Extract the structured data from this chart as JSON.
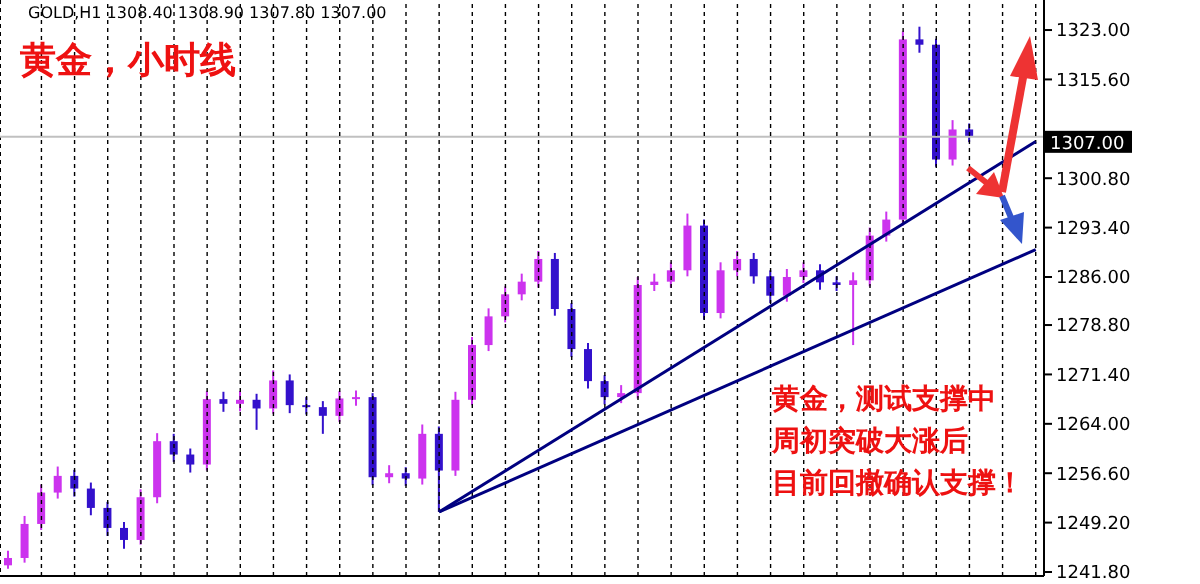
{
  "chart_data": {
    "type": "candlestick",
    "title": "黄金，小时线",
    "annotations": [
      "GOLD,H1  1308.40 1308.90 1307.80 1307.00",
      "黄金，测试支撑中",
      "周初突破大涨后",
      "目前回撤确认支撑！"
    ],
    "categories": [
      null,
      null,
      null,
      null,
      null,
      null,
      null,
      null,
      null,
      null,
      null,
      null,
      null,
      null,
      null,
      null,
      null,
      null,
      null,
      null,
      null,
      null,
      null,
      null,
      null,
      null,
      null,
      null,
      null,
      null,
      null,
      null,
      null,
      null,
      null,
      null,
      null,
      null,
      null,
      null,
      null,
      null,
      null,
      null,
      null,
      null,
      null,
      null,
      null,
      null,
      null,
      null,
      null,
      null,
      null,
      null,
      null,
      null,
      null,
      null,
      null,
      null,
      null
    ],
    "series": [
      {
        "color": "#cc33ee",
        "colors": [
          "#cc33ee",
          "#cc33ee",
          "#cc33ee",
          "#cc33ee",
          "#3311cc",
          "#3311cc",
          "#3311cc",
          "#3311cc",
          "#cc33ee",
          "#cc33ee",
          "#3311cc",
          "#3311cc",
          "#cc33ee",
          "#3311cc",
          "#cc33ee",
          "#3311cc",
          "#cc33ee",
          "#3311cc",
          "#3311cc",
          "#3311cc",
          "#cc33ee",
          "#cc33ee",
          "#3311cc",
          "#cc33ee",
          "#3311cc",
          "#cc33ee",
          "#3311cc",
          "#cc33ee",
          "#cc33ee",
          "#cc33ee",
          "#cc33ee",
          "#cc33ee",
          "#cc33ee",
          "#3311cc",
          "#3311cc",
          "#3311cc",
          "#3311cc",
          "#cc33ee",
          "#cc33ee",
          "#cc33ee",
          "#cc33ee",
          "#cc33ee",
          "#3311cc",
          "#cc33ee",
          "#cc33ee",
          "#3311cc",
          "#3311cc",
          "#cc33ee",
          "#cc33ee",
          "#3311cc",
          "#3311cc",
          "#cc33ee",
          "#cc33ee",
          "#cc33ee",
          "#cc33ee",
          "#3311cc",
          "#3311cc",
          "#cc33ee",
          "#3311cc",
          null,
          null,
          null,
          null
        ],
        "ohlc": [
          [
            1242.8,
            1245.0,
            1242.3,
            1243.9
          ],
          [
            1243.9,
            1250.2,
            1243.2,
            1249.0
          ],
          [
            1249.0,
            1254.9,
            1248.1,
            1253.7
          ],
          [
            1253.7,
            1257.6,
            1252.8,
            1256.2
          ],
          [
            1256.2,
            1257.1,
            1253.1,
            1254.3
          ],
          [
            1254.3,
            1255.2,
            1250.3,
            1251.4
          ],
          [
            1251.4,
            1252.3,
            1247.2,
            1248.4
          ],
          [
            1248.4,
            1249.3,
            1245.3,
            1246.6
          ],
          [
            1246.6,
            1254.2,
            1245.9,
            1253.0
          ],
          [
            1253.0,
            1262.6,
            1252.1,
            1261.4
          ],
          [
            1261.4,
            1262.5,
            1258.3,
            1259.4
          ],
          [
            1259.4,
            1260.3,
            1256.7,
            1257.9
          ],
          [
            1257.9,
            1268.9,
            1257.0,
            1267.7
          ],
          [
            1267.7,
            1268.8,
            1265.8,
            1267.0
          ],
          [
            1267.0,
            1268.9,
            1265.9,
            1267.6
          ],
          [
            1267.6,
            1268.5,
            1263.1,
            1266.3
          ],
          [
            1266.3,
            1272.0,
            1265.5,
            1270.5
          ],
          [
            1270.5,
            1271.4,
            1265.6,
            1266.8
          ],
          [
            1266.8,
            1268.0,
            1265.4,
            1266.5
          ],
          [
            1266.5,
            1267.4,
            1262.5,
            1265.2
          ],
          [
            1265.2,
            1268.9,
            1264.3,
            1267.8
          ],
          [
            1267.8,
            1269.0,
            1266.7,
            1268.0
          ],
          [
            1268.0,
            1268.6,
            1254.8,
            1256.0
          ],
          [
            1256.0,
            1257.8,
            1255.1,
            1256.6
          ],
          [
            1256.6,
            1257.5,
            1254.7,
            1255.8
          ],
          [
            1255.8,
            1263.9,
            1254.9,
            1262.5
          ],
          [
            1262.5,
            1263.6,
            1250.8,
            1257.0
          ],
          [
            1257.0,
            1268.8,
            1256.2,
            1267.6
          ],
          [
            1267.6,
            1277.0,
            1266.8,
            1275.8
          ],
          [
            1275.8,
            1281.3,
            1274.9,
            1280.1
          ],
          [
            1280.1,
            1284.6,
            1279.2,
            1283.4
          ],
          [
            1283.4,
            1286.5,
            1282.5,
            1285.3
          ],
          [
            1285.3,
            1289.9,
            1284.4,
            1288.7
          ],
          [
            1288.7,
            1289.6,
            1280.2,
            1281.2
          ],
          [
            1281.2,
            1282.1,
            1274.0,
            1275.2
          ],
          [
            1275.2,
            1276.1,
            1269.3,
            1270.4
          ],
          [
            1270.4,
            1271.3,
            1266.9,
            1268.0
          ],
          [
            1268.0,
            1269.8,
            1267.1,
            1268.6
          ],
          [
            1268.6,
            1286.0,
            1267.8,
            1284.8
          ],
          [
            1284.8,
            1286.5,
            1283.9,
            1285.3
          ],
          [
            1285.3,
            1288.2,
            1284.4,
            1287.0
          ],
          [
            1287.0,
            1295.5,
            1286.1,
            1293.7
          ],
          [
            1293.7,
            1294.6,
            1279.6,
            1280.6
          ],
          [
            1280.6,
            1288.2,
            1279.8,
            1287.0
          ],
          [
            1287.0,
            1289.9,
            1286.1,
            1288.7
          ],
          [
            1288.7,
            1289.6,
            1285.0,
            1286.1
          ],
          [
            1286.1,
            1287.0,
            1282.1,
            1283.2
          ],
          [
            1283.2,
            1287.2,
            1282.3,
            1286.0
          ],
          [
            1286.0,
            1288.2,
            1285.1,
            1287.0
          ],
          [
            1287.0,
            1287.9,
            1284.1,
            1285.2
          ],
          [
            1285.2,
            1286.1,
            1283.9,
            1284.8
          ],
          [
            1284.8,
            1286.7,
            1275.8,
            1285.5
          ],
          [
            1285.5,
            1293.4,
            1284.6,
            1292.2
          ],
          [
            1292.2,
            1295.8,
            1291.3,
            1294.6
          ],
          [
            1294.6,
            1322.8,
            1293.7,
            1321.6
          ],
          [
            1321.6,
            1323.5,
            1319.6,
            1320.8
          ],
          [
            1320.8,
            1321.7,
            1302.5,
            1303.6
          ],
          [
            1303.6,
            1309.5,
            1302.7,
            1308.1
          ],
          [
            1308.1,
            1309.0,
            1306.2,
            1307.0
          ],
          null,
          null,
          null,
          null
        ]
      },
      {
        "type": "line",
        "color": "#000080",
        "values": [
          null,
          null,
          null,
          null,
          null,
          null,
          null,
          null,
          null,
          null,
          null,
          null,
          null,
          null,
          null,
          null,
          null,
          null,
          null,
          null,
          null,
          null,
          null,
          null,
          null,
          null,
          1250.8,
          null,
          null,
          null,
          null,
          null,
          null,
          null,
          null,
          null,
          null,
          null,
          null,
          null,
          null,
          null,
          null,
          null,
          null,
          null,
          null,
          null,
          null,
          null,
          null,
          null,
          null,
          null,
          null,
          null,
          null,
          null,
          null,
          null,
          null,
          null,
          1306.3
        ]
      },
      {
        "type": "line",
        "color": "#000080",
        "values": [
          null,
          null,
          null,
          null,
          null,
          null,
          null,
          null,
          null,
          null,
          null,
          null,
          null,
          null,
          null,
          null,
          null,
          null,
          null,
          null,
          null,
          null,
          null,
          null,
          null,
          null,
          1250.8,
          null,
          null,
          null,
          null,
          null,
          null,
          null,
          null,
          null,
          null,
          null,
          null,
          null,
          null,
          null,
          null,
          null,
          null,
          null,
          null,
          null,
          null,
          null,
          null,
          null,
          null,
          null,
          null,
          null,
          null,
          null,
          null,
          null,
          null,
          null,
          1290.1
        ]
      }
    ],
    "ylim": [
      1241.2,
      1327.5
    ],
    "yticks": [
      {
        "value": 1241.8,
        "label": "1241.80"
      },
      {
        "value": 1249.2,
        "label": "1249.20"
      },
      {
        "value": 1256.6,
        "label": "1256.60"
      },
      {
        "value": 1264,
        "label": "1264.00"
      },
      {
        "value": 1271.4,
        "label": "1271.40"
      },
      {
        "value": 1278.8,
        "label": "1278.80"
      },
      {
        "value": 1286,
        "label": "1286.00"
      },
      {
        "value": 1293.4,
        "label": "1293.40"
      },
      {
        "value": 1300.8,
        "label": "1300.80"
      },
      {
        "value": 1315.6,
        "label": "1315.60"
      },
      {
        "value": 1323,
        "label": "1323.00"
      }
    ],
    "ref_lines": [
      {
        "axis": "y",
        "value": 1307,
        "label": "1307.00",
        "color": "#c0c0c0"
      }
    ],
    "grid": "x",
    "tick_labels": "y"
  }
}
